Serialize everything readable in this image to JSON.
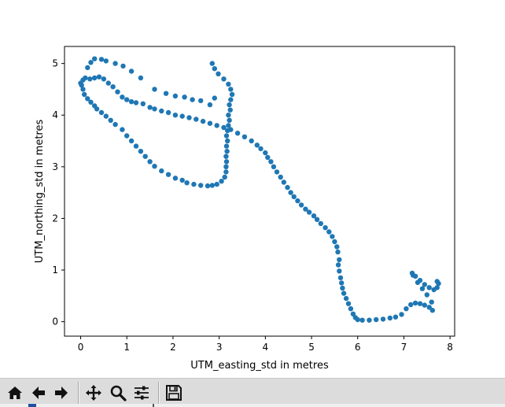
{
  "chart_data": {
    "type": "scatter",
    "title": "",
    "xlabel": "UTM_easting_std in metres",
    "ylabel": "UTM_northing_std in metres",
    "xlim": [
      -0.35,
      8.1
    ],
    "ylim": [
      -0.28,
      5.33
    ],
    "xticks": [
      0,
      1,
      2,
      3,
      4,
      5,
      6,
      7,
      8
    ],
    "yticks": [
      0,
      1,
      2,
      3,
      4,
      5
    ],
    "xtick_labels": [
      "0",
      "1",
      "2",
      "3",
      "4",
      "5",
      "6",
      "7",
      "8"
    ],
    "ytick_labels": [
      "0",
      "1",
      "2",
      "3",
      "4",
      "5"
    ],
    "grid": false,
    "marker_color": "#1f77b4",
    "points": [
      [
        2.85,
        5.0
      ],
      [
        2.9,
        4.9
      ],
      [
        2.98,
        4.8
      ],
      [
        3.1,
        4.7
      ],
      [
        3.2,
        4.6
      ],
      [
        3.25,
        4.5
      ],
      [
        3.28,
        4.4
      ],
      [
        3.25,
        4.3
      ],
      [
        3.22,
        4.2
      ],
      [
        3.24,
        4.1
      ],
      [
        3.2,
        4.0
      ],
      [
        3.22,
        3.9
      ],
      [
        3.2,
        3.8
      ],
      [
        3.18,
        3.7
      ],
      [
        3.16,
        3.6
      ],
      [
        3.18,
        3.5
      ],
      [
        3.16,
        3.4
      ],
      [
        3.17,
        3.3
      ],
      [
        3.15,
        3.2
      ],
      [
        3.16,
        3.1
      ],
      [
        3.15,
        3.0
      ],
      [
        3.15,
        2.9
      ],
      [
        3.12,
        2.8
      ],
      [
        3.05,
        2.72
      ],
      [
        2.95,
        2.66
      ],
      [
        2.85,
        2.64
      ],
      [
        2.75,
        2.63
      ],
      [
        2.6,
        2.64
      ],
      [
        2.45,
        2.66
      ],
      [
        2.3,
        2.69
      ],
      [
        2.2,
        2.74
      ],
      [
        2.05,
        2.78
      ],
      [
        1.9,
        2.85
      ],
      [
        1.75,
        2.92
      ],
      [
        1.6,
        3.01
      ],
      [
        1.5,
        3.1
      ],
      [
        1.4,
        3.2
      ],
      [
        1.3,
        3.3
      ],
      [
        1.2,
        3.4
      ],
      [
        1.1,
        3.5
      ],
      [
        1.0,
        3.6
      ],
      [
        0.9,
        3.72
      ],
      [
        0.75,
        3.82
      ],
      [
        0.65,
        3.9
      ],
      [
        0.55,
        3.98
      ],
      [
        0.45,
        4.05
      ],
      [
        0.35,
        4.12
      ],
      [
        0.3,
        4.18
      ],
      [
        0.22,
        4.25
      ],
      [
        0.15,
        4.32
      ],
      [
        0.08,
        4.4
      ],
      [
        0.05,
        4.5
      ],
      [
        0.02,
        4.58
      ],
      [
        0.0,
        4.62
      ],
      [
        0.05,
        4.68
      ],
      [
        0.1,
        4.72
      ],
      [
        0.2,
        4.7
      ],
      [
        0.3,
        4.72
      ],
      [
        0.4,
        4.74
      ],
      [
        0.5,
        4.7
      ],
      [
        0.6,
        4.62
      ],
      [
        0.7,
        4.55
      ],
      [
        0.8,
        4.45
      ],
      [
        0.9,
        4.35
      ],
      [
        1.0,
        4.3
      ],
      [
        1.1,
        4.26
      ],
      [
        1.2,
        4.24
      ],
      [
        1.35,
        4.22
      ],
      [
        1.5,
        4.15
      ],
      [
        1.6,
        4.12
      ],
      [
        1.75,
        4.08
      ],
      [
        1.9,
        4.05
      ],
      [
        2.05,
        4.0
      ],
      [
        2.2,
        3.98
      ],
      [
        2.35,
        3.95
      ],
      [
        2.5,
        3.92
      ],
      [
        2.65,
        3.88
      ],
      [
        2.8,
        3.84
      ],
      [
        2.95,
        3.8
      ],
      [
        3.1,
        3.76
      ],
      [
        3.25,
        3.72
      ],
      [
        3.4,
        3.65
      ],
      [
        3.55,
        3.58
      ],
      [
        3.7,
        3.5
      ],
      [
        3.82,
        3.42
      ],
      [
        3.9,
        3.35
      ],
      [
        4.0,
        3.27
      ],
      [
        4.05,
        3.18
      ],
      [
        4.12,
        3.1
      ],
      [
        4.18,
        3.0
      ],
      [
        4.25,
        2.9
      ],
      [
        4.33,
        2.8
      ],
      [
        4.4,
        2.7
      ],
      [
        4.48,
        2.6
      ],
      [
        4.55,
        2.5
      ],
      [
        4.62,
        2.42
      ],
      [
        4.7,
        2.34
      ],
      [
        4.78,
        2.26
      ],
      [
        4.87,
        2.18
      ],
      [
        4.95,
        2.12
      ],
      [
        5.05,
        2.05
      ],
      [
        5.12,
        1.98
      ],
      [
        5.2,
        1.9
      ],
      [
        5.3,
        1.82
      ],
      [
        5.38,
        1.74
      ],
      [
        5.45,
        1.65
      ],
      [
        5.5,
        1.55
      ],
      [
        5.55,
        1.45
      ],
      [
        5.57,
        1.35
      ],
      [
        5.6,
        1.2
      ],
      [
        5.58,
        1.1
      ],
      [
        5.6,
        0.98
      ],
      [
        5.63,
        0.85
      ],
      [
        5.65,
        0.75
      ],
      [
        5.67,
        0.65
      ],
      [
        5.7,
        0.55
      ],
      [
        5.75,
        0.45
      ],
      [
        5.8,
        0.35
      ],
      [
        5.85,
        0.25
      ],
      [
        5.9,
        0.15
      ],
      [
        5.95,
        0.08
      ],
      [
        6.0,
        0.04
      ],
      [
        6.1,
        0.03
      ],
      [
        6.25,
        0.03
      ],
      [
        6.4,
        0.04
      ],
      [
        6.55,
        0.05
      ],
      [
        6.7,
        0.07
      ],
      [
        6.82,
        0.09
      ],
      [
        6.95,
        0.14
      ],
      [
        7.05,
        0.25
      ],
      [
        7.15,
        0.33
      ],
      [
        7.25,
        0.36
      ],
      [
        7.35,
        0.35
      ],
      [
        7.45,
        0.32
      ],
      [
        7.55,
        0.28
      ],
      [
        7.62,
        0.22
      ],
      [
        7.6,
        0.38
      ],
      [
        7.5,
        0.52
      ],
      [
        7.4,
        0.64
      ],
      [
        7.3,
        0.76
      ],
      [
        7.2,
        0.9
      ],
      [
        7.18,
        0.94
      ],
      [
        7.25,
        0.88
      ],
      [
        7.35,
        0.8
      ],
      [
        7.45,
        0.72
      ],
      [
        7.55,
        0.66
      ],
      [
        7.65,
        0.62
      ],
      [
        7.72,
        0.66
      ],
      [
        7.75,
        0.74
      ],
      [
        7.72,
        0.78
      ],
      [
        2.9,
        4.33
      ],
      [
        2.8,
        4.2
      ],
      [
        2.6,
        4.28
      ],
      [
        2.42,
        4.3
      ],
      [
        2.25,
        4.35
      ],
      [
        2.05,
        4.37
      ],
      [
        1.85,
        4.42
      ],
      [
        1.6,
        4.5
      ],
      [
        1.3,
        4.72
      ],
      [
        1.1,
        4.85
      ],
      [
        0.92,
        4.95
      ],
      [
        0.75,
        5.0
      ],
      [
        0.55,
        5.05
      ],
      [
        0.45,
        5.08
      ],
      [
        0.3,
        5.09
      ],
      [
        0.22,
        5.02
      ],
      [
        0.15,
        4.92
      ]
    ]
  },
  "toolbar": {
    "buttons": [
      {
        "name": "home-button",
        "icon": "home-icon",
        "tip": "Reset original view"
      },
      {
        "name": "back-button",
        "icon": "arrow-left-icon",
        "tip": "Back to previous view"
      },
      {
        "name": "forward-button",
        "icon": "arrow-right-icon",
        "tip": "Forward to next view"
      },
      {
        "name": "pan-button",
        "icon": "move-arrows-icon",
        "tip": "Pan axes"
      },
      {
        "name": "zoom-button",
        "icon": "magnifier-icon",
        "tip": "Zoom to rectangle"
      },
      {
        "name": "subplots-button",
        "icon": "sliders-icon",
        "tip": "Configure subplots"
      },
      {
        "name": "save-button",
        "icon": "floppy-disk-icon",
        "tip": "Save the figure"
      }
    ]
  }
}
